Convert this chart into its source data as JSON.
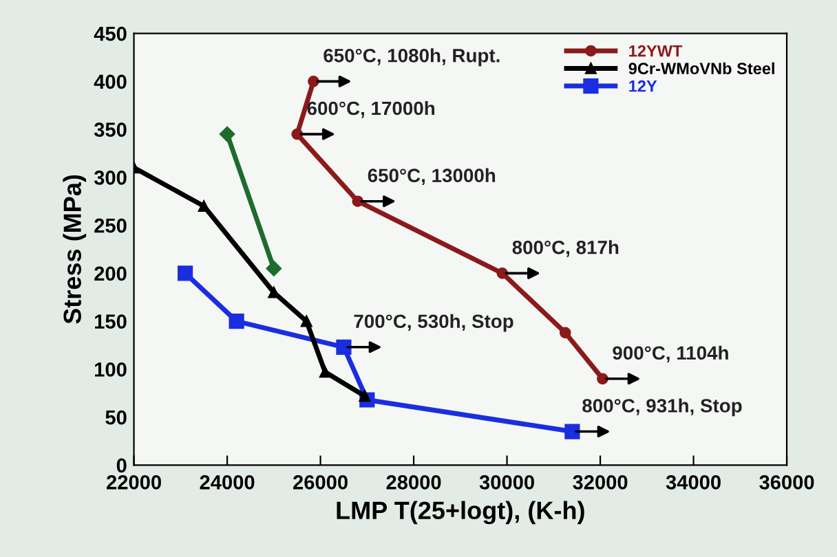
{
  "chart_data": {
    "type": "line",
    "xlabel": "LMP T(25+logt), (K-h)",
    "ylabel": "Stress (MPa)",
    "xlim": [
      22000,
      36000
    ],
    "xticks": [
      22000,
      24000,
      26000,
      28000,
      30000,
      32000,
      34000,
      36000
    ],
    "ylim": [
      0,
      450
    ],
    "yticks": [
      0,
      50,
      100,
      150,
      200,
      250,
      300,
      350,
      400,
      450
    ],
    "grid": false,
    "legend": "top right",
    "series": [
      {
        "name": "12YWT",
        "color": "#8b1a1a",
        "marker": "circle",
        "x": [
          25850,
          25500,
          26800,
          29900,
          31250,
          32050
        ],
        "values": [
          400,
          345,
          275,
          200,
          138,
          90
        ]
      },
      {
        "name": "9Cr-WMoVNb Steel",
        "color": "#000000",
        "marker": "triangle",
        "x": [
          22000,
          23500,
          25000,
          25700,
          26100,
          26950
        ],
        "values": [
          310,
          270,
          180,
          150,
          97,
          72
        ]
      },
      {
        "name": "12Y",
        "color": "#1a2ee0",
        "marker": "square",
        "x": [
          23100,
          24200,
          26500,
          27000,
          31400
        ],
        "values": [
          200,
          150,
          123,
          68,
          35
        ]
      },
      {
        "color": "#1e6b2e",
        "marker": "diamond",
        "x": [
          24000,
          25000
        ],
        "values": [
          345,
          205
        ]
      }
    ],
    "annotations": [
      {
        "text": "650°C, 1080h, Rupt.",
        "x": 25850,
        "y": 400
      },
      {
        "text": "600°C, 17000h",
        "x": 25500,
        "y": 345
      },
      {
        "text": "650°C, 13000h",
        "x": 26800,
        "y": 275
      },
      {
        "text": "800°C, 817h",
        "x": 29900,
        "y": 200
      },
      {
        "text": "900°C, 1104h",
        "x": 32050,
        "y": 90
      },
      {
        "text": "700°C, 530h, Stop",
        "x": 26500,
        "y": 123
      },
      {
        "text": "800°C, 931h, Stop",
        "x": 31400,
        "y": 35
      }
    ]
  }
}
